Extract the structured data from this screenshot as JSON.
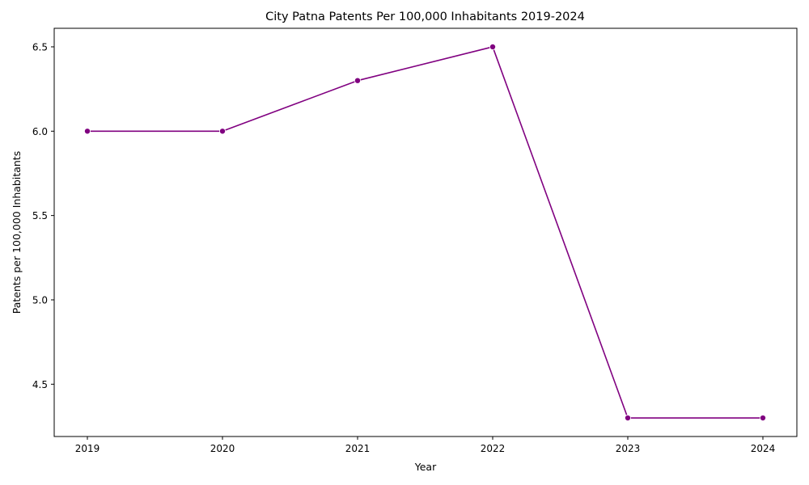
{
  "chart_data": {
    "type": "line",
    "title": "City Patna Patents Per 100,000 Inhabitants 2019-2024",
    "xlabel": "Year",
    "ylabel": "Patents per 100,000 Inhabitants",
    "x": [
      "2019",
      "2020",
      "2021",
      "2022",
      "2023",
      "2024"
    ],
    "series": [
      {
        "values": [
          6.0,
          6.0,
          6.3,
          6.5,
          4.3,
          4.3
        ],
        "color": "#800080"
      }
    ],
    "ylim": [
      4.19,
      6.61
    ],
    "yticks": [
      "4.5",
      "5.0",
      "5.5",
      "6.0",
      "6.5"
    ],
    "grid": false,
    "legend": "none"
  }
}
